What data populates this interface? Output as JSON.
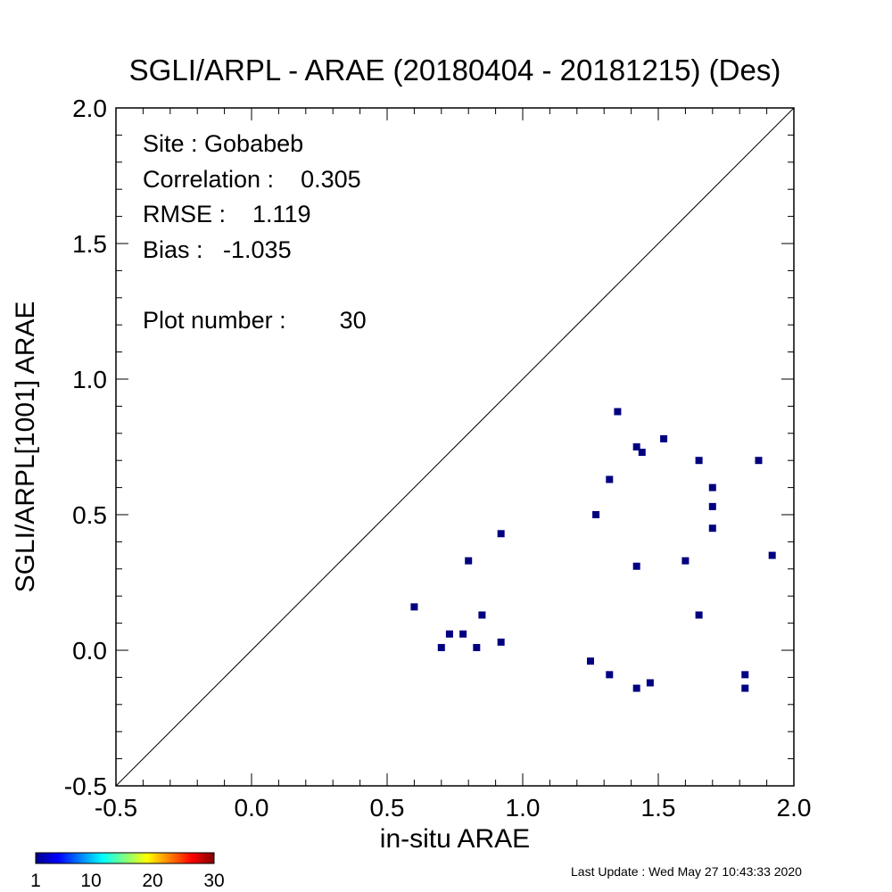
{
  "chart_data": {
    "type": "scatter",
    "title": "SGLI/ARPL - ARAE (20180404 - 20181215) (Des)",
    "xlabel": "in-situ ARAE",
    "ylabel": "SGLI/ARPL[1001]    ARAE",
    "xlim": [
      -0.5,
      2.0
    ],
    "ylim": [
      -0.5,
      2.0
    ],
    "x_ticks": [
      "-0.5",
      "0.0",
      "0.5",
      "1.0",
      "1.5",
      "2.0"
    ],
    "y_ticks": [
      "-0.5",
      "0.0",
      "0.5",
      "1.0",
      "1.5",
      "2.0"
    ],
    "reference_line": "1:1",
    "grid": false,
    "point_color": "#000080",
    "points": [
      {
        "x": 0.6,
        "y": 0.16
      },
      {
        "x": 0.7,
        "y": 0.01
      },
      {
        "x": 0.73,
        "y": 0.06
      },
      {
        "x": 0.78,
        "y": 0.06
      },
      {
        "x": 0.8,
        "y": 0.33
      },
      {
        "x": 0.83,
        "y": 0.01
      },
      {
        "x": 0.85,
        "y": 0.13
      },
      {
        "x": 0.92,
        "y": 0.43
      },
      {
        "x": 0.92,
        "y": 0.03
      },
      {
        "x": 1.25,
        "y": -0.04
      },
      {
        "x": 1.27,
        "y": 0.5
      },
      {
        "x": 1.32,
        "y": 0.63
      },
      {
        "x": 1.32,
        "y": -0.09
      },
      {
        "x": 1.35,
        "y": 0.88
      },
      {
        "x": 1.42,
        "y": 0.75
      },
      {
        "x": 1.42,
        "y": 0.31
      },
      {
        "x": 1.42,
        "y": -0.14
      },
      {
        "x": 1.44,
        "y": 0.73
      },
      {
        "x": 1.47,
        "y": -0.12
      },
      {
        "x": 1.52,
        "y": 0.78
      },
      {
        "x": 1.6,
        "y": 0.33
      },
      {
        "x": 1.65,
        "y": 0.7
      },
      {
        "x": 1.65,
        "y": 0.13
      },
      {
        "x": 1.7,
        "y": 0.6
      },
      {
        "x": 1.7,
        "y": 0.53
      },
      {
        "x": 1.7,
        "y": 0.45
      },
      {
        "x": 1.82,
        "y": -0.09
      },
      {
        "x": 1.82,
        "y": -0.14
      },
      {
        "x": 1.87,
        "y": 0.7
      },
      {
        "x": 1.92,
        "y": 0.35
      }
    ]
  },
  "stats": {
    "site": "Site : Gobabeb",
    "correlation": "Correlation :    0.305",
    "rmse": "RMSE :    1.119",
    "bias": "Bias :   -1.035",
    "plot_number": "Plot number :        30"
  },
  "colorbar": {
    "colors": [
      "#00008b",
      "#0000ff",
      "#0080ff",
      "#00ffff",
      "#80ff80",
      "#ffff00",
      "#ff8000",
      "#ff0000",
      "#800000"
    ],
    "labels": [
      "1",
      "10",
      "20",
      "30"
    ],
    "values": [
      1,
      10,
      20,
      30
    ],
    "min": 1,
    "max": 30
  },
  "footer": {
    "last_update": "Last Update : Wed May 27 10:43:33 2020"
  }
}
